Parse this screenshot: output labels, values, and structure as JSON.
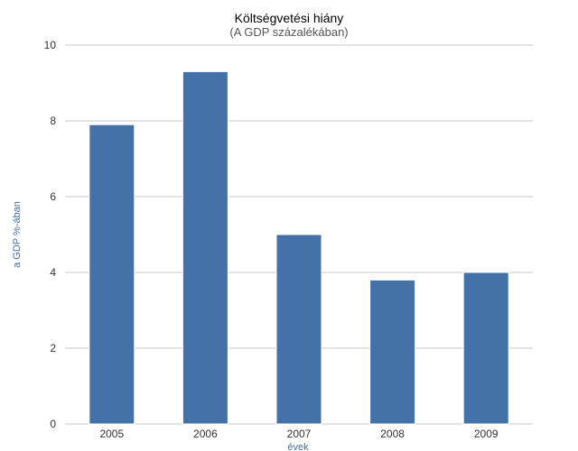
{
  "chart_data": {
    "type": "bar",
    "title": "Költségvetési hiány",
    "subtitle": "(A GDP százalékában)",
    "categories": [
      "2005",
      "2006",
      "2007",
      "2008",
      "2009"
    ],
    "series": [
      {
        "values": [
          7.9,
          9.3,
          5.0,
          3.8,
          4.0
        ]
      }
    ],
    "xlabel": "évek",
    "ylabel": "a GDP %-ában",
    "ylim": [
      0,
      10
    ],
    "yticks": [
      "0",
      "2",
      "4",
      "6",
      "8",
      "10"
    ],
    "grid": true,
    "legend": "none",
    "colors": {
      "bar": "#4472a8",
      "bar_edge": "#ffffff",
      "grid": "#c8c8c8",
      "axis_title": "#4a6fa5"
    }
  }
}
